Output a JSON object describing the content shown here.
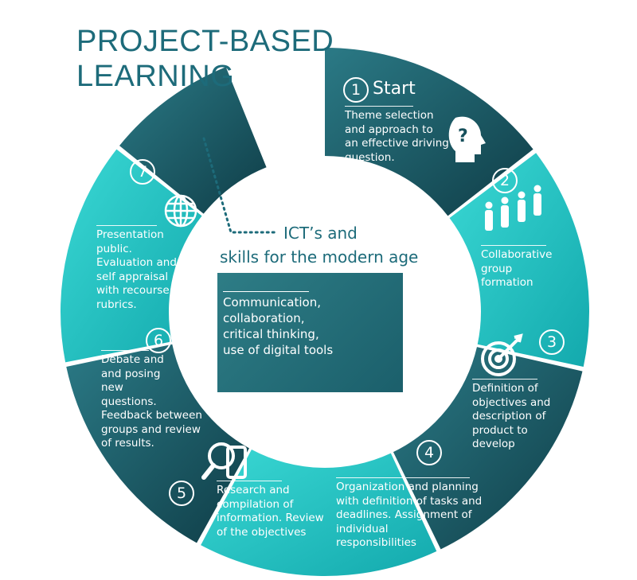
{
  "title": {
    "line1": "PROJECT-BASED",
    "line2": "LEARNING"
  },
  "colors": {
    "dark": "#16505c",
    "light": "#22c3c3",
    "title": "#1d6b7a"
  },
  "center": {
    "heading_line1": "ICT’s and",
    "heading_line2": "skills for the modern age",
    "box_text": "Communication,\ncollaboration,\ncritical thinking,\nuse of digital tools"
  },
  "steps": [
    {
      "number": "1",
      "label": "Start",
      "text": "Theme selection\nand approach to\nan effective driving\nquestion.",
      "icon": "head-question-icon"
    },
    {
      "number": "2",
      "text": "Collaborative\ngroup\nformation",
      "icon": "people-group-icon"
    },
    {
      "number": "3",
      "text": "Definition of\nobjectives and\ndescription of\nproduct to\ndevelop",
      "icon": "target-icon"
    },
    {
      "number": "4",
      "text": "Organization and planning\nwith definition of tasks and\ndeadlines. Assignment of\nindividual\nresponsibilities"
    },
    {
      "number": "5",
      "text": "Research and\ncompilation of\ninformation. Review\nof the objectives",
      "icon": "magnifier-phone-icon"
    },
    {
      "number": "6",
      "text": "Debate and\nand posing\n new\nquestions.\n    Feedback between\ngroups and review\nof results."
    },
    {
      "number": "7",
      "text": "Presentation\npublic.\nEvaluation and\nself appraisal\nwith recourse to\nrubrics.",
      "icon": "globe-icon"
    }
  ]
}
